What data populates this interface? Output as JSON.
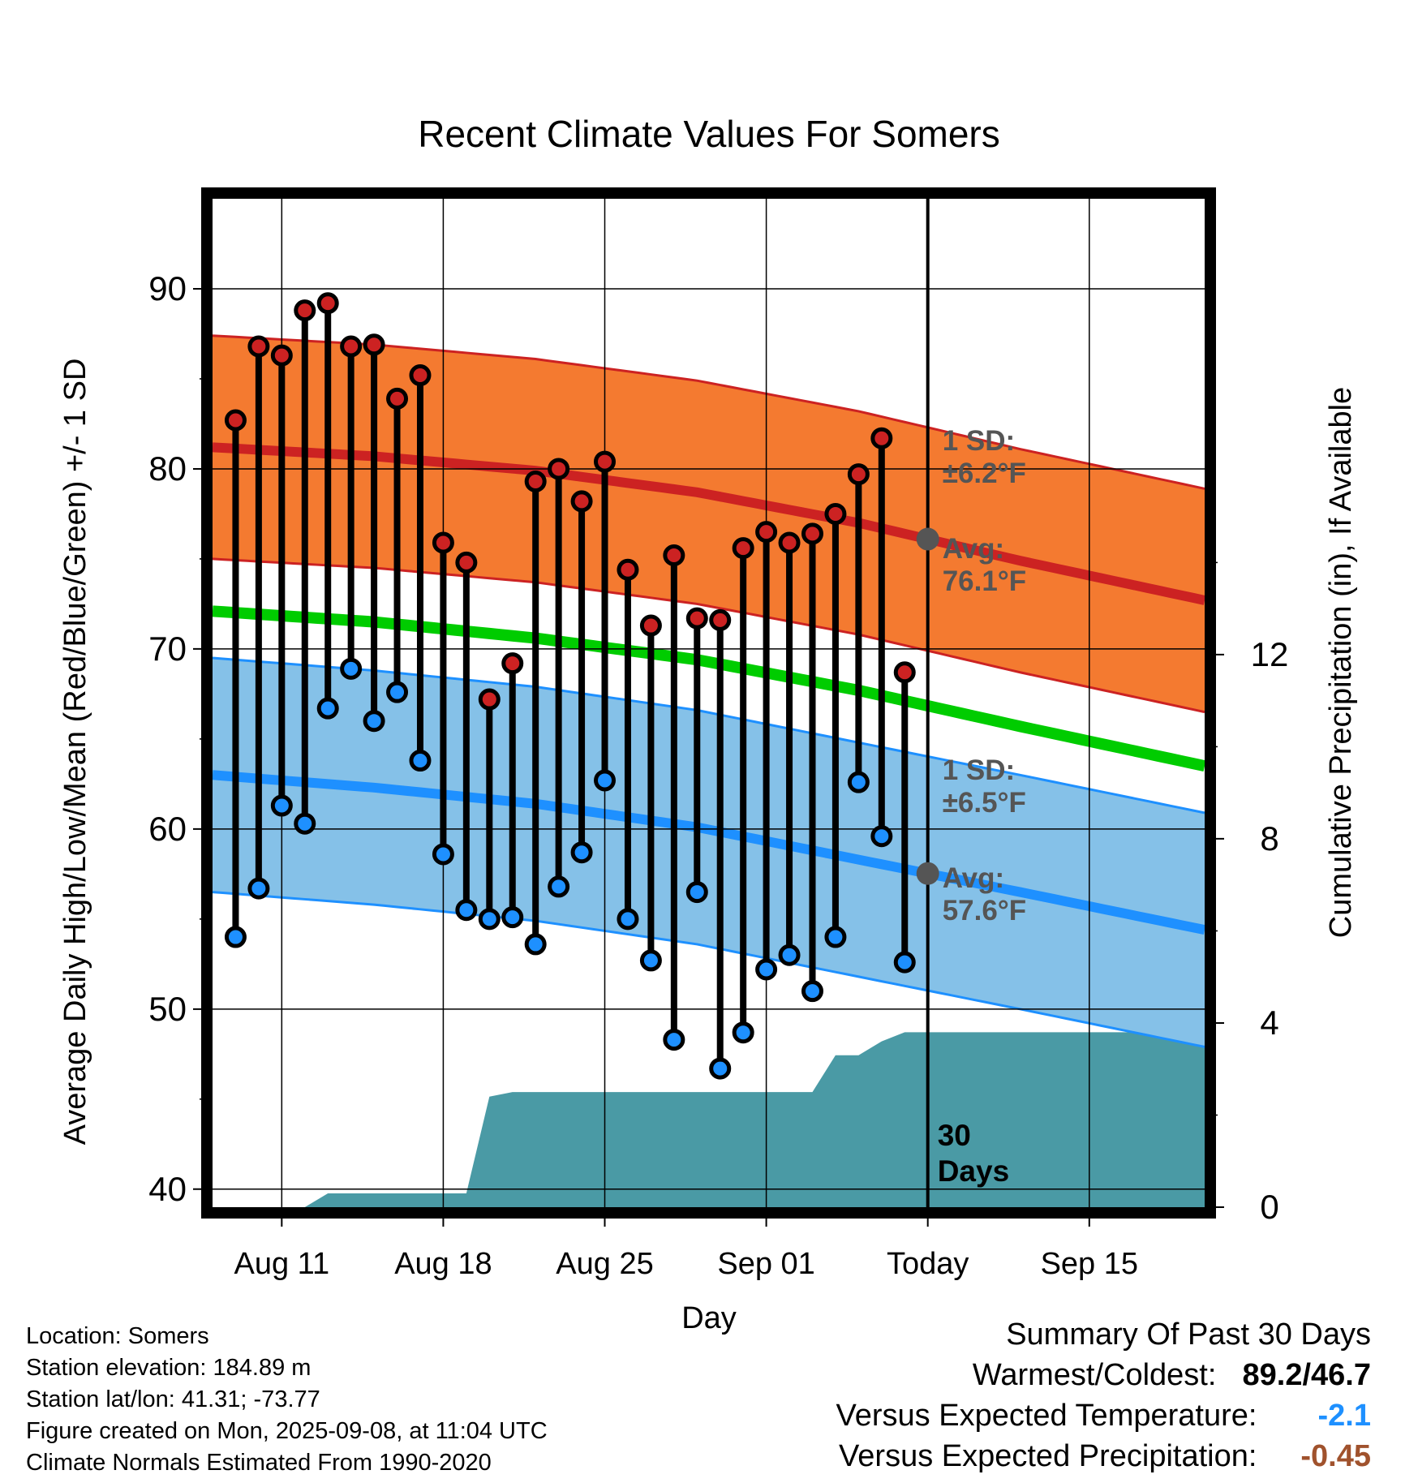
{
  "chart_data": {
    "type": "line",
    "title": "Recent Climate Values For Somers",
    "xlabel": "Day",
    "ylabel": "Average Daily High/Low/Mean (Red/Blue/Green) +/- 1 SD",
    "y2label": "Cumulative Precipitation (in), If Available",
    "xlim": [
      "2025-08-08",
      "2025-09-20"
    ],
    "ylim": [
      39,
      95
    ],
    "y2lim": [
      0,
      21.9
    ],
    "x_ticks": [
      {
        "date": "2025-08-11",
        "label": "Aug 11"
      },
      {
        "date": "2025-08-18",
        "label": "Aug 18"
      },
      {
        "date": "2025-08-25",
        "label": "Aug 25"
      },
      {
        "date": "2025-09-01",
        "label": "Sep 01"
      },
      {
        "date": "2025-09-08",
        "label": "Today"
      },
      {
        "date": "2025-09-15",
        "label": "Sep 15"
      }
    ],
    "y_ticks": [
      40,
      50,
      60,
      70,
      80,
      90
    ],
    "y2_ticks": [
      0,
      4,
      8,
      12
    ],
    "grid": true,
    "today": "2025-09-08",
    "today_label": [
      "30",
      "Days"
    ],
    "observed": {
      "dates": [
        "2025-08-09",
        "2025-08-10",
        "2025-08-11",
        "2025-08-12",
        "2025-08-13",
        "2025-08-14",
        "2025-08-15",
        "2025-08-16",
        "2025-08-17",
        "2025-08-18",
        "2025-08-19",
        "2025-08-20",
        "2025-08-21",
        "2025-08-22",
        "2025-08-23",
        "2025-08-24",
        "2025-08-25",
        "2025-08-26",
        "2025-08-27",
        "2025-08-28",
        "2025-08-29",
        "2025-08-30",
        "2025-08-31",
        "2025-09-01",
        "2025-09-02",
        "2025-09-03",
        "2025-09-04",
        "2025-09-05",
        "2025-09-06",
        "2025-09-07"
      ],
      "high": [
        82.7,
        86.8,
        86.3,
        88.8,
        89.2,
        86.8,
        86.9,
        83.9,
        85.2,
        75.9,
        74.8,
        67.2,
        69.2,
        79.3,
        80.0,
        78.2,
        80.4,
        74.4,
        71.3,
        75.2,
        71.7,
        71.6,
        75.6,
        76.5,
        75.9,
        76.4,
        77.5,
        79.7,
        81.7,
        68.7
      ],
      "low": [
        54.0,
        56.7,
        61.3,
        60.3,
        66.7,
        68.9,
        66.0,
        67.6,
        63.8,
        58.6,
        55.5,
        55.0,
        55.1,
        53.6,
        56.8,
        58.7,
        62.7,
        55.0,
        52.7,
        48.3,
        56.5,
        46.7,
        48.7,
        52.2,
        53.0,
        51.0,
        54.0,
        62.6,
        59.6,
        52.6
      ]
    },
    "normals": {
      "dates": [
        "2025-08-08",
        "2025-08-15",
        "2025-08-22",
        "2025-08-29",
        "2025-09-05",
        "2025-09-12",
        "2025-09-20"
      ],
      "high_avg": [
        81.2,
        80.7,
        79.9,
        78.7,
        77.0,
        74.9,
        72.7
      ],
      "high_sd": 6.2,
      "low_avg": [
        63.0,
        62.3,
        61.4,
        60.1,
        58.3,
        56.5,
        54.4
      ],
      "low_sd": 6.5,
      "mean_avg": [
        72.1,
        71.5,
        70.6,
        69.4,
        67.7,
        65.7,
        63.5
      ]
    },
    "precip_cumulative": {
      "dates": [
        "2025-08-08",
        "2025-08-12",
        "2025-08-13",
        "2025-08-19",
        "2025-08-20",
        "2025-08-21",
        "2025-08-22",
        "2025-09-03",
        "2025-09-04",
        "2025-09-05",
        "2025-09-06",
        "2025-09-07",
        "2025-09-20"
      ],
      "values": [
        0,
        0,
        0.3,
        0.3,
        2.4,
        2.5,
        2.5,
        2.5,
        3.3,
        3.3,
        3.6,
        3.8,
        3.8
      ]
    },
    "annotations": {
      "high_sd_label": [
        "1 SD:",
        "±6.2°F"
      ],
      "high_avg_label": [
        "Avg:",
        "76.1°F"
      ],
      "low_sd_label": [
        "1 SD:",
        "±6.5°F"
      ],
      "low_avg_label": [
        "Avg:",
        "57.6°F"
      ]
    },
    "colors": {
      "high_band": "#f47a30",
      "high_line": "#cc2222",
      "low_band": "#85c1e8",
      "low_line": "#1e90ff",
      "mean_line": "#00cc00",
      "precip": "#4a9aa5",
      "high_dot": "#cc2222",
      "low_dot": "#1e90ff",
      "today_dot": "#555555",
      "label_text": "#555555"
    }
  },
  "footer": {
    "location": "Location: Somers",
    "elevation": "Station elevation: 184.89 m",
    "latlon": "Station lat/lon: 41.31; -73.77",
    "created": "Figure created on Mon, 2025-09-08, at 11:04 UTC",
    "normals": "Climate Normals Estimated From 1990-2020"
  },
  "summary": {
    "title": "Summary Of Past 30 Days",
    "warmest_label": "Warmest/Coldest:",
    "warmest_value": "89.2/46.7",
    "temp_label": "Versus Expected Temperature:",
    "temp_value": "-2.1",
    "temp_color": "#1e90ff",
    "precip_label": "Versus Expected Precipitation:",
    "precip_value": "-0.45",
    "precip_color": "#a0522d"
  }
}
